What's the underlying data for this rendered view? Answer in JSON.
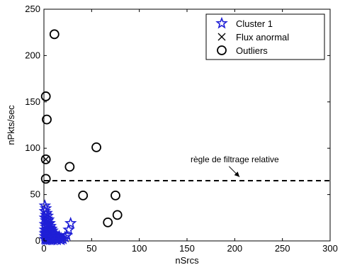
{
  "chart_data": {
    "type": "scatter",
    "title": "",
    "xlabel": "nSrcs",
    "ylabel": "nPkts/sec",
    "xlim": [
      0,
      300
    ],
    "ylim": [
      0,
      250
    ],
    "x_ticks": [
      0,
      50,
      100,
      150,
      200,
      250,
      300
    ],
    "y_ticks": [
      0,
      50,
      100,
      150,
      200,
      250
    ],
    "grid": false,
    "legend": {
      "placement": "top-right",
      "entries": [
        {
          "name": "Cluster 1",
          "marker": "star",
          "color": "#1f1fd6"
        },
        {
          "name": "Flux anormal",
          "marker": "x",
          "color": "#000000"
        },
        {
          "name": "Outliers",
          "marker": "circle",
          "color": "#000000"
        }
      ]
    },
    "series": [
      {
        "name": "Cluster 1",
        "marker": "star",
        "color": "#1f1fd6",
        "points": [
          [
            1,
            2
          ],
          [
            1,
            5
          ],
          [
            1,
            8
          ],
          [
            1,
            12
          ],
          [
            1,
            18
          ],
          [
            1,
            25
          ],
          [
            1,
            32
          ],
          [
            1,
            38
          ],
          [
            2,
            1
          ],
          [
            2,
            4
          ],
          [
            2,
            9
          ],
          [
            2,
            15
          ],
          [
            2,
            22
          ],
          [
            2,
            28
          ],
          [
            2,
            35
          ],
          [
            3,
            2
          ],
          [
            3,
            6
          ],
          [
            3,
            11
          ],
          [
            3,
            17
          ],
          [
            3,
            24
          ],
          [
            3,
            30
          ],
          [
            4,
            1
          ],
          [
            4,
            5
          ],
          [
            4,
            10
          ],
          [
            4,
            16
          ],
          [
            4,
            21
          ],
          [
            4,
            27
          ],
          [
            5,
            2
          ],
          [
            5,
            7
          ],
          [
            5,
            12
          ],
          [
            5,
            18
          ],
          [
            5,
            23
          ],
          [
            6,
            1
          ],
          [
            6,
            4
          ],
          [
            6,
            9
          ],
          [
            6,
            14
          ],
          [
            6,
            19
          ],
          [
            7,
            2
          ],
          [
            7,
            6
          ],
          [
            7,
            11
          ],
          [
            7,
            16
          ],
          [
            8,
            1
          ],
          [
            8,
            5
          ],
          [
            8,
            9
          ],
          [
            8,
            13
          ],
          [
            9,
            2
          ],
          [
            9,
            7
          ],
          [
            9,
            11
          ],
          [
            10,
            1
          ],
          [
            10,
            4
          ],
          [
            10,
            8
          ],
          [
            12,
            2
          ],
          [
            12,
            6
          ],
          [
            14,
            1
          ],
          [
            14,
            4
          ],
          [
            16,
            2
          ],
          [
            16,
            5
          ],
          [
            18,
            1
          ],
          [
            18,
            3
          ],
          [
            20,
            2
          ],
          [
            22,
            4
          ],
          [
            24,
            6
          ],
          [
            26,
            12
          ],
          [
            28,
            19
          ]
        ]
      },
      {
        "name": "Flux anormal",
        "marker": "x",
        "color": "#000000",
        "points": [
          [
            2,
            88
          ]
        ]
      },
      {
        "name": "Outliers",
        "marker": "circle",
        "color": "#000000",
        "points": [
          [
            11,
            223
          ],
          [
            2,
            156
          ],
          [
            3,
            131
          ],
          [
            2,
            88
          ],
          [
            2,
            67
          ],
          [
            27,
            80
          ],
          [
            55,
            101
          ],
          [
            41,
            49
          ],
          [
            75,
            49
          ],
          [
            77,
            28
          ],
          [
            67,
            20
          ]
        ]
      }
    ],
    "threshold_line": {
      "y": 65,
      "x_from": 0,
      "x_to": 300,
      "style": "dashed",
      "color": "#000000"
    },
    "annotation": {
      "text": "règle de filtrage relative",
      "x": 200,
      "y": 85,
      "arrow_to": [
        205,
        66
      ]
    }
  }
}
